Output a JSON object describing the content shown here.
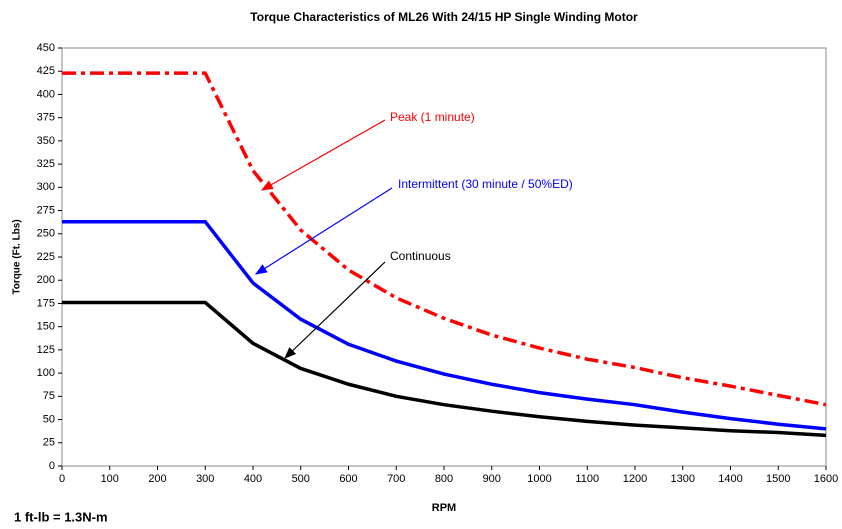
{
  "chart_data": {
    "type": "line",
    "title": "Torque Characteristics of ML26 With 24/15 HP Single Winding Motor",
    "x_label": "RPM",
    "y_label": "Torque (Ft. Lbs)",
    "footnote": "1 ft-lb = 1.3N-m",
    "x": [
      0,
      100,
      200,
      300,
      400,
      500,
      600,
      700,
      800,
      900,
      1000,
      1100,
      1200,
      1300,
      1400,
      1500,
      1600
    ],
    "series": [
      {
        "name": "Peak (1 minute)",
        "color": "#ff0000",
        "dash": "dashdot",
        "values": [
          423,
          423,
          423,
          423,
          318,
          254,
          211,
          181,
          159,
          141,
          127,
          115,
          106,
          95,
          86,
          76,
          66
        ]
      },
      {
        "name": "Intermittent (30 minute / 50%ED)",
        "color": "#0000ff",
        "dash": "solid",
        "values": [
          263,
          263,
          263,
          263,
          197,
          158,
          131,
          113,
          99,
          88,
          79,
          72,
          66,
          58,
          51,
          45,
          40
        ]
      },
      {
        "name": "Continuous",
        "color": "#000000",
        "dash": "solid",
        "values": [
          176,
          176,
          176,
          176,
          132,
          105,
          88,
          75,
          66,
          59,
          53,
          48,
          44,
          41,
          38,
          36,
          33
        ]
      }
    ],
    "xlim": [
      0,
      1600
    ],
    "xticks": [
      0,
      100,
      200,
      300,
      400,
      500,
      600,
      700,
      800,
      900,
      1000,
      1100,
      1200,
      1300,
      1400,
      1500,
      1600
    ],
    "ylim": [
      0,
      450
    ],
    "yticks": [
      0,
      25,
      50,
      75,
      100,
      125,
      150,
      175,
      200,
      225,
      250,
      275,
      300,
      325,
      350,
      375,
      400,
      425,
      450
    ],
    "grid": false
  }
}
